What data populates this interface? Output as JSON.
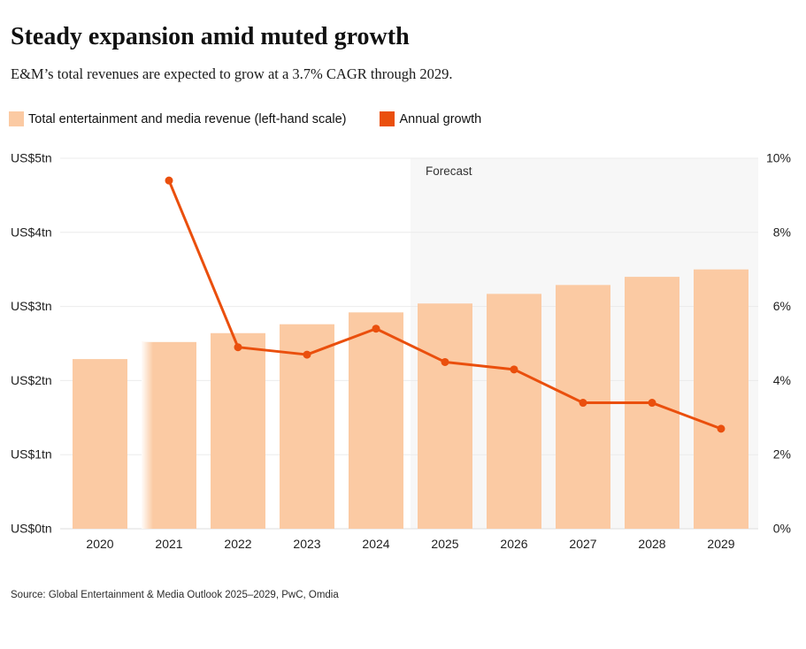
{
  "header": {
    "title": "Steady expansion amid muted growth",
    "subtitle": "E&M’s total revenues are expected to grow at a 3.7% CAGR through 2029."
  },
  "legend": {
    "revenue_label": "Total entertainment and media revenue (left-hand scale)",
    "growth_label": "Annual growth"
  },
  "source": "Source: Global Entertainment & Media Outlook 2025–2029, PwC, Omdia",
  "chart_data": {
    "type": "bar",
    "subtype": "combo-bar-line-dual-axis",
    "categories": [
      "2020",
      "2021",
      "2022",
      "2023",
      "2024",
      "2025",
      "2026",
      "2027",
      "2028",
      "2029"
    ],
    "series": [
      {
        "name": "Total entertainment and media revenue",
        "type": "bar",
        "axis": "left",
        "unit": "US$tn",
        "values": [
          2.29,
          2.52,
          2.64,
          2.76,
          2.92,
          3.04,
          3.17,
          3.29,
          3.4,
          3.5
        ]
      },
      {
        "name": "Annual growth",
        "type": "line",
        "axis": "right",
        "unit": "%",
        "values": [
          null,
          9.4,
          4.9,
          4.7,
          5.4,
          4.5,
          4.3,
          3.4,
          3.4,
          2.7
        ]
      }
    ],
    "left_axis": {
      "ticks": [
        "US$0tn",
        "US$1tn",
        "US$2tn",
        "US$3tn",
        "US$4tn",
        "US$5tn"
      ],
      "min": 0,
      "max": 5
    },
    "right_axis": {
      "ticks": [
        "0%",
        "2%",
        "4%",
        "6%",
        "8%",
        "10%"
      ],
      "min": 0,
      "max": 10
    },
    "forecast": {
      "label": "Forecast",
      "start_category": "2025",
      "end_category": "2029"
    },
    "highlighted_bar": "2021",
    "grid": true,
    "legend_position": "top-left",
    "colors": {
      "bar": "#FBCAA3",
      "line": "#EA4F0D",
      "forecast_bg": "#F7F7F7",
      "gridline": "#EBEBEB",
      "zero_line": "#DCDCDC",
      "axis_text": "#1F1F1F",
      "forecast_text": "#333333"
    }
  }
}
